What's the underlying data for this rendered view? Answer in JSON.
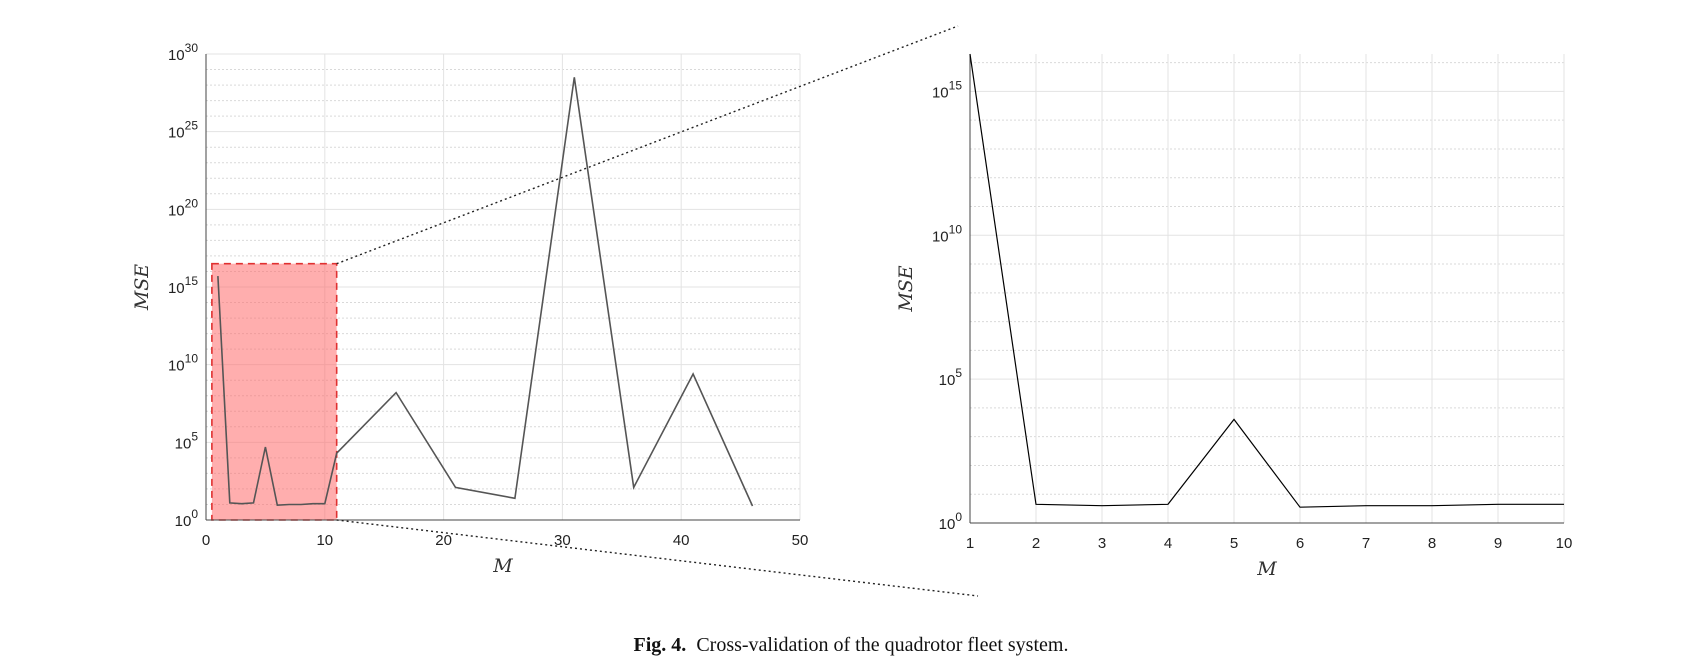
{
  "chart_data": [
    {
      "type": "line",
      "scale_y": "log",
      "grid": true,
      "xlabel": "M",
      "ylabel": "MSE",
      "xlim": [
        0,
        50
      ],
      "xticks": [
        "0",
        "10",
        "20",
        "30",
        "40",
        "50"
      ],
      "ylim_exp": [
        0,
        30
      ],
      "yticks_exp": [
        "0",
        "5",
        "10",
        "15",
        "20",
        "25",
        "30"
      ],
      "series": [
        {
          "x": [
            1,
            2,
            3,
            4,
            5,
            6,
            7,
            8,
            9,
            10,
            11,
            16,
            21,
            26,
            31,
            36,
            41,
            46
          ],
          "y_exp": [
            15.7,
            1.1,
            1.05,
            1.1,
            4.7,
            0.95,
            1.0,
            1.0,
            1.05,
            1.05,
            4.3,
            8.2,
            2.1,
            1.4,
            28.5,
            2.1,
            9.4,
            0.9
          ]
        }
      ],
      "highlight_x_range": [
        1,
        11
      ],
      "highlight_y_exp_range": [
        0,
        16.5
      ],
      "highlight_color": "#ff6b6b"
    },
    {
      "type": "line",
      "scale_y": "log",
      "grid": true,
      "xlabel": "M",
      "ylabel": "MSE",
      "xlim": [
        1,
        10
      ],
      "xticks": [
        "1",
        "2",
        "3",
        "4",
        "5",
        "6",
        "7",
        "8",
        "9",
        "10"
      ],
      "ylim_exp": [
        0,
        16.3
      ],
      "yticks_exp": [
        "0",
        "5",
        "10",
        "15"
      ],
      "series": [
        {
          "x": [
            1,
            2,
            3,
            4,
            5,
            6,
            7,
            8,
            9,
            10
          ],
          "y_exp": [
            16.3,
            0.65,
            0.6,
            0.65,
            3.6,
            0.55,
            0.6,
            0.6,
            0.65,
            0.65
          ]
        }
      ]
    }
  ],
  "caption": {
    "label": "Fig. 4.",
    "text": "Cross-validation of the quadrotor fleet system."
  }
}
